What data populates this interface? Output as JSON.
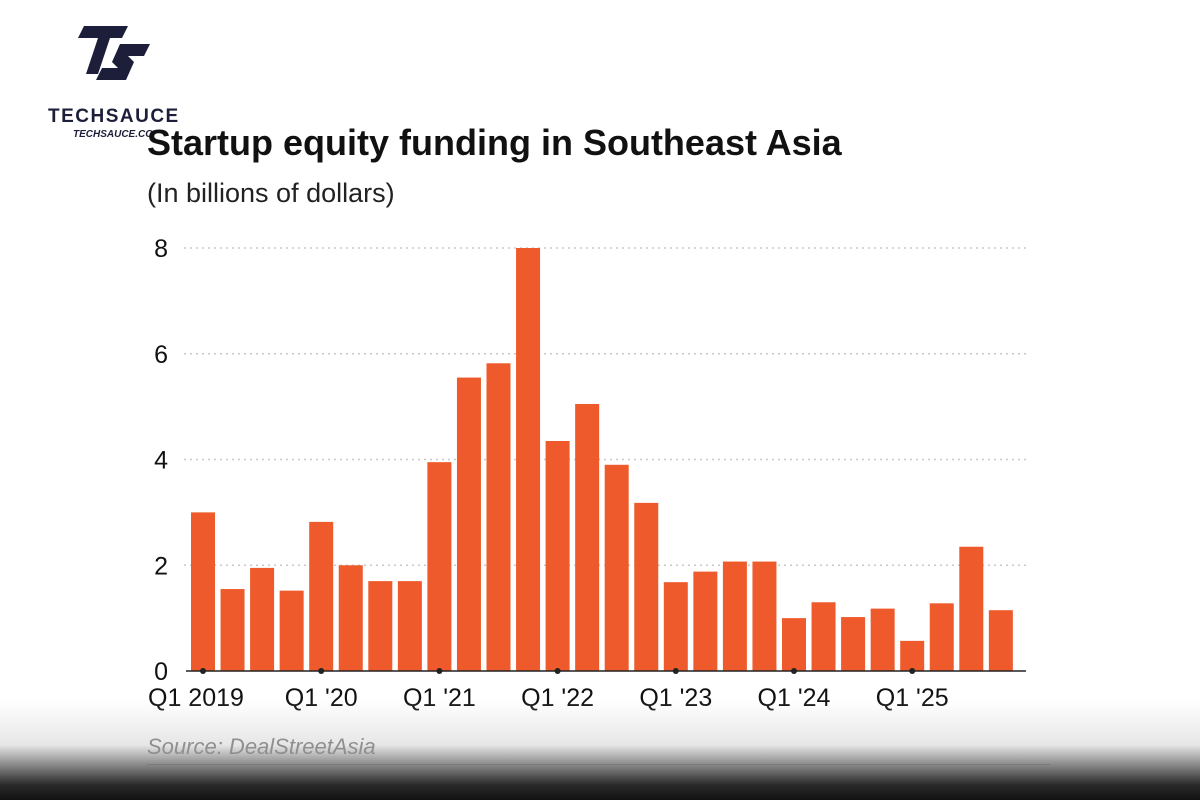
{
  "brand": {
    "name": "TECHSAUCE",
    "url": "TECHSAUCE.CO",
    "logo_icon": "techsauce-logo-icon",
    "color": "#1d1f3a"
  },
  "colors": {
    "bar": "#ee5a2b",
    "grid": "#c8c8c8",
    "axis": "#222222",
    "text": "#111111",
    "source": "#8f8f8f"
  },
  "chart_data": {
    "type": "bar",
    "title": "Startup equity funding in Southeast Asia",
    "subtitle": "(In billions of dollars)",
    "xlabel": "",
    "ylabel": "",
    "ylim": [
      0,
      8
    ],
    "yticks": [
      0,
      2,
      4,
      6,
      8
    ],
    "grid": true,
    "categories": [
      "Q1 2019",
      "Q2 2019",
      "Q3 2019",
      "Q4 2019",
      "Q1 2020",
      "Q2 2020",
      "Q3 2020",
      "Q4 2020",
      "Q1 2021",
      "Q2 2021",
      "Q3 2021",
      "Q4 2021",
      "Q1 2022",
      "Q2 2022",
      "Q3 2022",
      "Q4 2022",
      "Q1 2023",
      "Q2 2023",
      "Q3 2023",
      "Q4 2023",
      "Q1 2024",
      "Q2 2024",
      "Q3 2024",
      "Q4 2024",
      "Q1 2025",
      "Q2 2025",
      "Q3 2025",
      "Q4 2025"
    ],
    "values": [
      3.0,
      1.55,
      1.95,
      1.52,
      2.82,
      2.0,
      1.7,
      1.7,
      3.95,
      5.55,
      5.82,
      8.0,
      4.35,
      5.05,
      3.9,
      3.18,
      1.68,
      1.88,
      2.07,
      2.07,
      1.0,
      1.3,
      1.02,
      1.18,
      0.57,
      1.28,
      2.35,
      1.15
    ],
    "tick_labels": [
      {
        "index": 0,
        "label": "Q1 2019"
      },
      {
        "index": 4,
        "label": "Q1 '20"
      },
      {
        "index": 8,
        "label": "Q1 '21"
      },
      {
        "index": 12,
        "label": "Q1 '22"
      },
      {
        "index": 16,
        "label": "Q1 '23"
      },
      {
        "index": 20,
        "label": "Q1 '24"
      },
      {
        "index": 24,
        "label": "Q1 '25"
      }
    ],
    "source": "Source: DealStreetAsia"
  }
}
